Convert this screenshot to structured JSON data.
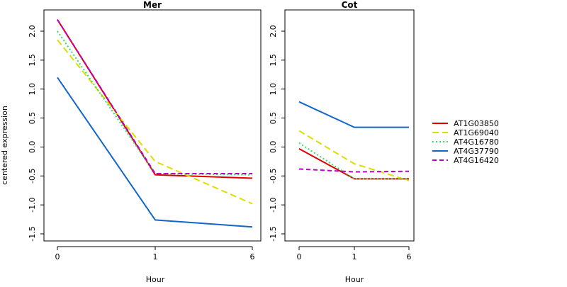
{
  "chart_data": {
    "type": "line",
    "ylabel": "centered expression",
    "xlabel": "Hour",
    "legend_position": "right",
    "series_styles": [
      {
        "name": "AT1G03850",
        "color": "#e00000",
        "dash": "solid"
      },
      {
        "name": "AT1G69040",
        "color": "#dddd00",
        "dash": "longdash"
      },
      {
        "name": "AT4G16780",
        "color": "#33dd66",
        "dash": "dotted"
      },
      {
        "name": "AT4G37790",
        "color": "#1166cc",
        "dash": "solid"
      },
      {
        "name": "AT4G16420",
        "color": "#bb00cc",
        "dash": "dashed"
      }
    ],
    "panels": [
      {
        "title": "Mer",
        "x_ticks": [
          "0",
          "1",
          "6"
        ],
        "y_ticks": [
          "-1.5",
          "-1.0",
          "-0.5",
          "0.0",
          "0.5",
          "1.0",
          "1.5",
          "2.0"
        ],
        "ylim": [
          -1.5,
          2.35
        ],
        "series": [
          {
            "name": "AT1G03850",
            "values": [
              2.2,
              -0.48,
              -0.54
            ]
          },
          {
            "name": "AT1G69040",
            "values": [
              1.85,
              -0.25,
              -0.98
            ]
          },
          {
            "name": "AT4G16780",
            "values": [
              2.0,
              -0.46,
              -0.48
            ]
          },
          {
            "name": "AT4G37790",
            "values": [
              1.2,
              -1.26,
              -1.38
            ]
          },
          {
            "name": "AT4G16420",
            "values": [
              2.2,
              -0.46,
              -0.46
            ]
          }
        ]
      },
      {
        "title": "Cot",
        "x_ticks": [
          "0",
          "1",
          "6"
        ],
        "y_ticks": [
          "-1.5",
          "-1.0",
          "-0.5",
          "0.0",
          "0.5",
          "1.0",
          "1.5",
          "2.0"
        ],
        "ylim": [
          -1.5,
          2.35
        ],
        "series": [
          {
            "name": "AT1G03850",
            "values": [
              -0.03,
              -0.55,
              -0.55
            ]
          },
          {
            "name": "AT1G69040",
            "values": [
              0.28,
              -0.29,
              -0.58
            ]
          },
          {
            "name": "AT4G16780",
            "values": [
              0.07,
              -0.55,
              -0.55
            ]
          },
          {
            "name": "AT4G37790",
            "values": [
              0.78,
              0.34,
              0.34
            ]
          },
          {
            "name": "AT4G16420",
            "values": [
              -0.38,
              -0.43,
              -0.42
            ]
          }
        ]
      }
    ]
  }
}
